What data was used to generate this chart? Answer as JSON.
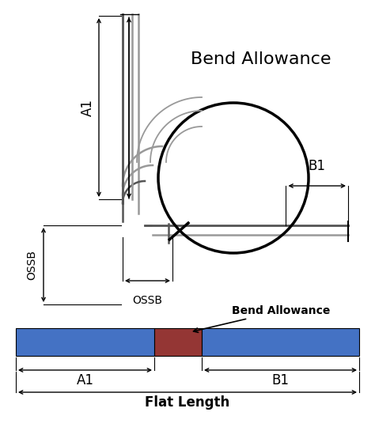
{
  "bg_color": "#ffffff",
  "title_top": "Bend Allowance",
  "blue_color": "#4472C4",
  "red_color": "#943634",
  "label_A1": "A1",
  "label_B1": "B1",
  "label_flat": "Flat Length",
  "label_bend": "Bend Allowance",
  "label_ossb_h": "OSSB",
  "label_ossb_w": "OSSB",
  "label_a1_top": "A1",
  "label_b1_right": "B1",
  "gray_dark": "#555555",
  "gray_light": "#999999",
  "black": "#000000"
}
